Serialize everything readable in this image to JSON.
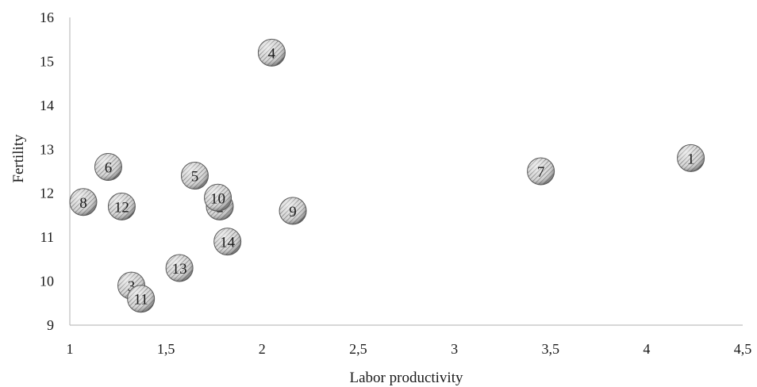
{
  "chart_data": {
    "type": "scatter",
    "title": "",
    "xlabel": "Labor productivity",
    "ylabel": "Fertility",
    "xlim": [
      1,
      4.5
    ],
    "ylim": [
      9,
      16
    ],
    "x_ticks": [
      "1",
      "1,5",
      "2",
      "2,5",
      "3",
      "3,5",
      "4",
      "4,5"
    ],
    "x_tick_values": [
      1,
      1.5,
      2,
      2.5,
      3,
      3.5,
      4,
      4.5
    ],
    "y_ticks": [
      "9",
      "10",
      "11",
      "12",
      "13",
      "14",
      "15",
      "16"
    ],
    "y_tick_values": [
      9,
      10,
      11,
      12,
      13,
      14,
      15,
      16
    ],
    "grid": false,
    "legend": "none",
    "marker_style": "hatched-gray-sphere",
    "points": [
      {
        "label": "1",
        "x": 4.23,
        "y": 12.8
      },
      {
        "label": "2",
        "x": 1.78,
        "y": 11.7
      },
      {
        "label": "3",
        "x": 1.32,
        "y": 9.9
      },
      {
        "label": "4",
        "x": 2.05,
        "y": 15.2
      },
      {
        "label": "5",
        "x": 1.65,
        "y": 12.4
      },
      {
        "label": "6",
        "x": 1.2,
        "y": 12.6
      },
      {
        "label": "7",
        "x": 3.45,
        "y": 12.5
      },
      {
        "label": "8",
        "x": 1.07,
        "y": 11.8
      },
      {
        "label": "9",
        "x": 2.16,
        "y": 11.6
      },
      {
        "label": "10",
        "x": 1.77,
        "y": 11.9
      },
      {
        "label": "11",
        "x": 1.37,
        "y": 9.6
      },
      {
        "label": "12",
        "x": 1.27,
        "y": 11.7
      },
      {
        "label": "13",
        "x": 1.57,
        "y": 10.3
      },
      {
        "label": "14",
        "x": 1.82,
        "y": 10.9
      }
    ]
  }
}
